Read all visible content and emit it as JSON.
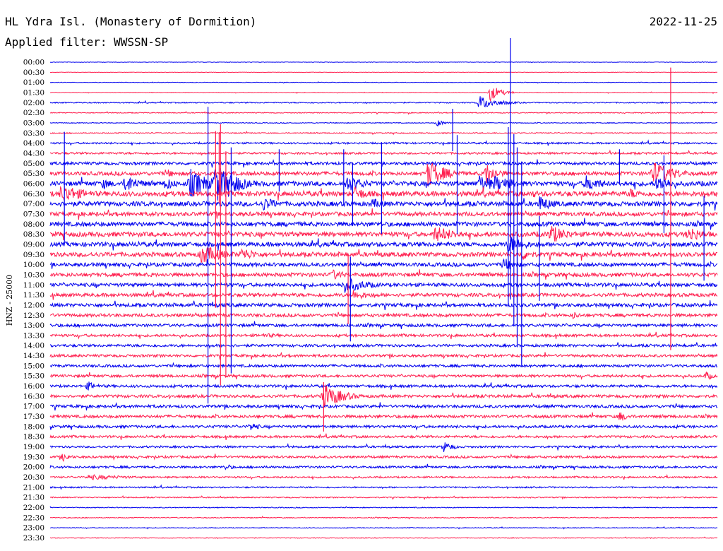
{
  "header": {
    "station": "HL Ydra Isl. (Monastery of Dormition)",
    "date": "2022-11-25",
    "filter": "Applied filter: WWSSN-SP"
  },
  "colors": {
    "odd": "#0000ee",
    "even": "#ff1f4f"
  },
  "chart_data": {
    "type": "line",
    "title": "HL Ydra Isl. (Monastery of Dormition)",
    "ylabel": "HNZ - 25000",
    "tick_labels": [
      "00:00",
      "00:30",
      "01:00",
      "01:30",
      "02:00",
      "02:30",
      "03:00",
      "03:30",
      "04:00",
      "04:30",
      "05:00",
      "05:30",
      "06:00",
      "06:30",
      "07:00",
      "07:30",
      "08:00",
      "08:30",
      "09:00",
      "09:30",
      "10:00",
      "10:30",
      "11:00",
      "11:30",
      "12:00",
      "12:30",
      "13:00",
      "13:30",
      "14:00",
      "14:30",
      "15:00",
      "15:30",
      "16:00",
      "16:30",
      "17:00",
      "17:30",
      "18:00",
      "18:30",
      "19:00",
      "19:30",
      "20:00",
      "20:30",
      "21:00",
      "21:30",
      "22:00",
      "22:30",
      "23:00",
      "23:30"
    ],
    "row_noise": [
      0.3,
      0.3,
      0.35,
      0.4,
      0.8,
      0.6,
      0.5,
      0.7,
      1.2,
      1.4,
      2.0,
      2.6,
      3.2,
      3.4,
      3.2,
      2.8,
      3.0,
      3.2,
      3.0,
      3.0,
      2.6,
      2.6,
      2.4,
      2.4,
      2.4,
      2.2,
      2.0,
      1.8,
      1.8,
      1.8,
      1.8,
      1.8,
      1.8,
      2.0,
      2.0,
      2.0,
      1.8,
      1.6,
      1.4,
      1.6,
      1.5,
      1.2,
      1.0,
      0.8,
      0.6,
      0.6,
      0.5,
      0.5
    ],
    "x_range_minutes": [
      0,
      30
    ],
    "events": [
      {
        "row": 4,
        "t": 19.3,
        "amp": 10,
        "dur": 1.5
      },
      {
        "row": 3,
        "t": 19.8,
        "amp": 12,
        "dur": 0.8
      },
      {
        "row": 6,
        "t": 17.4,
        "amp": 5,
        "dur": 0.6
      },
      {
        "row": 13,
        "t": 0.5,
        "amp": 14,
        "dur": 2.0
      },
      {
        "row": 12,
        "t": 2.4,
        "amp": 8,
        "dur": 1.0
      },
      {
        "row": 12,
        "t": 3.4,
        "amp": 14,
        "dur": 1.2
      },
      {
        "row": 11,
        "t": 5.3,
        "amp": 6,
        "dur": 0.8
      },
      {
        "row": 12,
        "t": 5.2,
        "amp": 10,
        "dur": 1.0
      },
      {
        "row": 12,
        "t": 6.3,
        "amp": 22,
        "dur": 1.5
      },
      {
        "row": 12,
        "t": 7.4,
        "amp": 30,
        "dur": 1.6
      },
      {
        "row": 12,
        "t": 8.0,
        "amp": 22,
        "dur": 1.2
      },
      {
        "row": 19,
        "t": 6.8,
        "amp": 14,
        "dur": 2.0
      },
      {
        "row": 19,
        "t": 8.6,
        "amp": 10,
        "dur": 1.5
      },
      {
        "row": 14,
        "t": 9.6,
        "amp": 10,
        "dur": 1.5
      },
      {
        "row": 12,
        "t": 13.3,
        "amp": 12,
        "dur": 1.8
      },
      {
        "row": 14,
        "t": 14.5,
        "amp": 8,
        "dur": 1.2
      },
      {
        "row": 13,
        "t": 13.7,
        "amp": 10,
        "dur": 1.5
      },
      {
        "row": 22,
        "t": 13.2,
        "amp": 12,
        "dur": 2.0
      },
      {
        "row": 21,
        "t": 12.7,
        "amp": 8,
        "dur": 1.2
      },
      {
        "row": 23,
        "t": 13.6,
        "amp": 8,
        "dur": 1.5
      },
      {
        "row": 33,
        "t": 12.3,
        "amp": 18,
        "dur": 1.6
      },
      {
        "row": 11,
        "t": 17.0,
        "amp": 20,
        "dur": 1.5
      },
      {
        "row": 17,
        "t": 17.3,
        "amp": 12,
        "dur": 2.0
      },
      {
        "row": 12,
        "t": 19.3,
        "amp": 14,
        "dur": 1.5
      },
      {
        "row": 11,
        "t": 19.6,
        "amp": 16,
        "dur": 1.0
      },
      {
        "row": 12,
        "t": 20.0,
        "amp": 12,
        "dur": 2.0
      },
      {
        "row": 18,
        "t": 20.6,
        "amp": 14,
        "dur": 1.4
      },
      {
        "row": 19,
        "t": 21.2,
        "amp": 9,
        "dur": 1.2
      },
      {
        "row": 20,
        "t": 20.4,
        "amp": 10,
        "dur": 1.2
      },
      {
        "row": 13,
        "t": 21.7,
        "amp": 6,
        "dur": 1.0
      },
      {
        "row": 14,
        "t": 22.0,
        "amp": 12,
        "dur": 1.2
      },
      {
        "row": 17,
        "t": 22.5,
        "amp": 14,
        "dur": 1.5
      },
      {
        "row": 12,
        "t": 24.1,
        "amp": 12,
        "dur": 1.5
      },
      {
        "row": 13,
        "t": 26.1,
        "amp": 8,
        "dur": 1.0
      },
      {
        "row": 11,
        "t": 27.1,
        "amp": 18,
        "dur": 1.8
      },
      {
        "row": 12,
        "t": 27.3,
        "amp": 12,
        "dur": 1.4
      },
      {
        "row": 17,
        "t": 28.7,
        "amp": 12,
        "dur": 1.4
      },
      {
        "row": 31,
        "t": 29.5,
        "amp": 7,
        "dur": 0.6
      },
      {
        "row": 39,
        "t": 0.6,
        "amp": 7,
        "dur": 0.6
      },
      {
        "row": 41,
        "t": 1.7,
        "amp": 4,
        "dur": 4.0
      },
      {
        "row": 27,
        "t": 9.5,
        "amp": 3,
        "dur": 4.5
      },
      {
        "row": 38,
        "t": 17.7,
        "amp": 8,
        "dur": 0.8
      },
      {
        "row": 36,
        "t": 9.0,
        "amp": 7,
        "dur": 0.8
      },
      {
        "row": 35,
        "t": 25.6,
        "amp": 8,
        "dur": 0.8
      },
      {
        "row": 32,
        "t": 1.7,
        "amp": 7,
        "dur": 0.8
      },
      {
        "row": 25,
        "t": 23.5,
        "amp": 6,
        "dur": 0.8
      },
      {
        "row": 40,
        "t": 7.9,
        "amp": 5,
        "dur": 0.6
      }
    ],
    "spikes": [
      {
        "row": 8,
        "t": 0.64,
        "up": 16,
        "down": 140
      },
      {
        "row": 10,
        "t": 7.1,
        "up": 80,
        "down": 340
      },
      {
        "row": 11,
        "t": 7.44,
        "up": 60,
        "down": 190
      },
      {
        "row": 11,
        "t": 7.66,
        "up": 70,
        "down": 300
      },
      {
        "row": 13,
        "t": 7.9,
        "up": 60,
        "down": 260
      },
      {
        "row": 14,
        "t": 8.14,
        "up": 80,
        "down": 240
      },
      {
        "row": 9,
        "t": 7.6,
        "up": 30,
        "down": 70
      },
      {
        "row": 10,
        "t": 10.3,
        "up": 20,
        "down": 40
      },
      {
        "row": 10,
        "t": 13.2,
        "up": 20,
        "down": 60
      },
      {
        "row": 12,
        "t": 13.6,
        "up": 30,
        "down": 60
      },
      {
        "row": 21,
        "t": 13.4,
        "up": 30,
        "down": 70
      },
      {
        "row": 22,
        "t": 13.5,
        "up": 40,
        "down": 80
      },
      {
        "row": 33,
        "t": 12.3,
        "up": 20,
        "down": 50
      },
      {
        "row": 10,
        "t": 14.9,
        "up": 30,
        "down": 100
      },
      {
        "row": 6,
        "t": 18.1,
        "up": 20,
        "down": 40
      },
      {
        "row": 10,
        "t": 18.3,
        "up": 40,
        "down": 100
      },
      {
        "row": 6,
        "t": 20.7,
        "up": 120,
        "down": 250
      },
      {
        "row": 12,
        "t": 20.6,
        "up": 80,
        "down": 170
      },
      {
        "row": 12,
        "t": 20.85,
        "up": 70,
        "down": 200
      },
      {
        "row": 14,
        "t": 21.0,
        "up": 80,
        "down": 200
      },
      {
        "row": 20,
        "t": 21.0,
        "up": 50,
        "down": 80
      },
      {
        "row": 14,
        "t": 21.2,
        "up": 60,
        "down": 230
      },
      {
        "row": 18,
        "t": 22.0,
        "up": 40,
        "down": 80
      },
      {
        "row": 10,
        "t": 25.6,
        "up": 20,
        "down": 30
      },
      {
        "row": 12,
        "t": 27.6,
        "up": 40,
        "down": 70
      },
      {
        "row": 11,
        "t": 27.9,
        "up": 150,
        "down": 250
      },
      {
        "row": 16,
        "t": 29.4,
        "up": 40,
        "down": 80
      }
    ]
  }
}
